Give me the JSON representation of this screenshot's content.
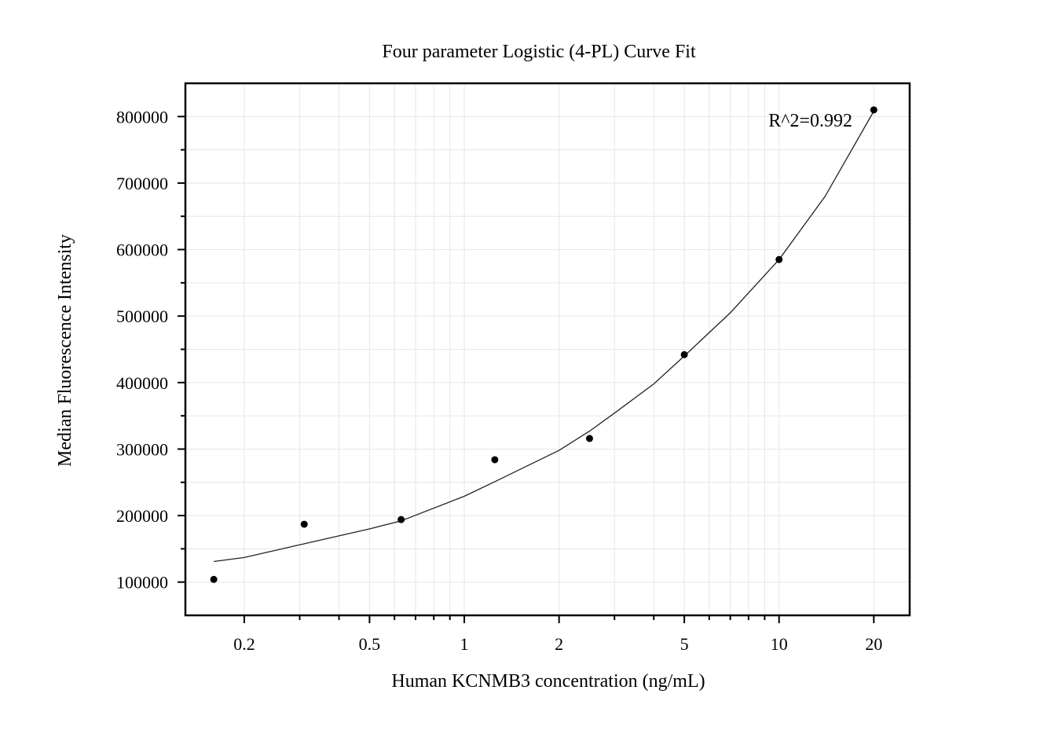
{
  "chart_data": {
    "type": "scatter",
    "title": "Four parameter Logistic (4-PL) Curve Fit",
    "xlabel": "Human KCNMB3 concentration (ng/mL)",
    "ylabel": "Median Fluorescence Intensity",
    "x_scale": "log",
    "xlim": [
      0.13,
      26
    ],
    "ylim": [
      50000,
      850000
    ],
    "x_ticks": [
      0.2,
      0.5,
      1,
      2,
      5,
      10,
      20
    ],
    "x_tick_labels": [
      "0.2",
      "0.5",
      "1",
      "2",
      "5",
      "10",
      "20"
    ],
    "y_ticks": [
      100000,
      200000,
      300000,
      400000,
      500000,
      600000,
      700000,
      800000
    ],
    "y_tick_labels": [
      "100000",
      "200000",
      "300000",
      "400000",
      "500000",
      "600000",
      "700000",
      "800000"
    ],
    "grid": true,
    "series": [
      {
        "type": "scatter",
        "x": [
          0.16,
          0.31,
          0.63,
          1.25,
          2.5,
          5,
          10,
          20
        ],
        "y": [
          104000,
          187000,
          194000,
          284000,
          316000,
          442000,
          585000,
          810000
        ]
      },
      {
        "type": "line",
        "x": [
          0.16,
          0.2,
          0.3,
          0.5,
          0.63,
          1,
          1.25,
          2,
          2.5,
          3,
          4,
          5,
          7,
          10,
          14,
          20
        ],
        "y": [
          131000,
          137000,
          156000,
          180000,
          192000,
          229000,
          251000,
          298000,
          327000,
          354000,
          398000,
          440000,
          505000,
          585000,
          680000,
          808000
        ]
      }
    ],
    "annotations": [
      {
        "text": "R^2=0.992",
        "position": "top-right"
      }
    ]
  },
  "colors": {
    "marker": "#000000",
    "fit_line": "#222222",
    "grid": "#e6e6e6",
    "frame": "#000000"
  }
}
